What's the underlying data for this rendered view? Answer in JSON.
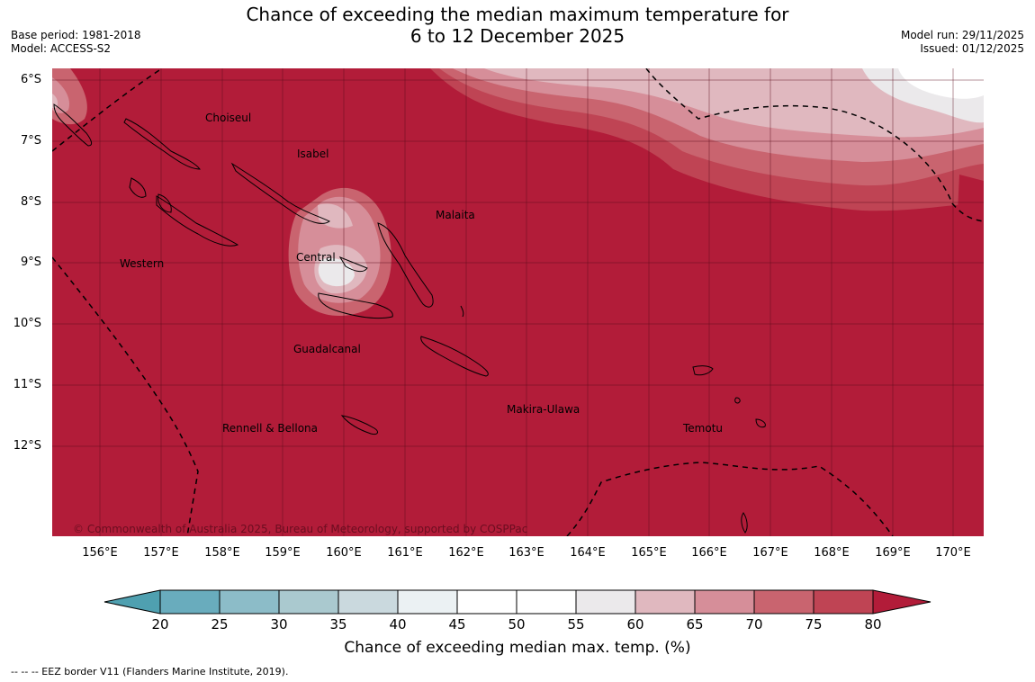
{
  "title": {
    "line1": "Chance of exceeding the median maximum temperature for",
    "line2": "6 to 12 December 2025"
  },
  "meta_left": {
    "base_period": "Base period: 1981-2018",
    "model": "Model: ACCESS-S2"
  },
  "meta_right": {
    "model_run": "Model run: 29/11/2025",
    "issued": "Issued: 01/12/2025"
  },
  "map": {
    "lat_labels": [
      "6°S",
      "7°S",
      "8°S",
      "9°S",
      "10°S",
      "11°S",
      "12°S"
    ],
    "lon_labels": [
      "156°E",
      "157°E",
      "158°E",
      "159°E",
      "160°E",
      "161°E",
      "162°E",
      "163°E",
      "164°E",
      "165°E",
      "166°E",
      "167°E",
      "168°E",
      "169°E",
      "170°E"
    ],
    "provinces": {
      "choiseul": "Choiseul",
      "isabel": "Isabel",
      "malaita": "Malaita",
      "western": "Western",
      "central": "Central",
      "guadalcanal": "Guadalcanal",
      "makira": "Makira-Ulawa",
      "rennell": "Rennell & Bellona",
      "temotu": "Temotu"
    },
    "copyright": "© Commonwealth of Australia 2025, Bureau of Meteorology, supported by COSPPac"
  },
  "colorbar": {
    "ticks": [
      "20",
      "25",
      "30",
      "35",
      "40",
      "45",
      "50",
      "55",
      "60",
      "65",
      "70",
      "75",
      "80"
    ],
    "colors": [
      "#4fa0b0",
      "#69acbd",
      "#8cbcc8",
      "#aac9cf",
      "#cad9de",
      "#ebf1f3",
      "#ffffff",
      "#ffffff",
      "#ebe9eb",
      "#e0b8bf",
      "#d68e99",
      "#c9646f",
      "#bf4454",
      "#b21c39"
    ],
    "title": "Chance of exceeding median max. temp. (%)"
  },
  "legend_note": "-- -- -- EEZ border V11 (Flanders Marine Institute, 2019)."
}
